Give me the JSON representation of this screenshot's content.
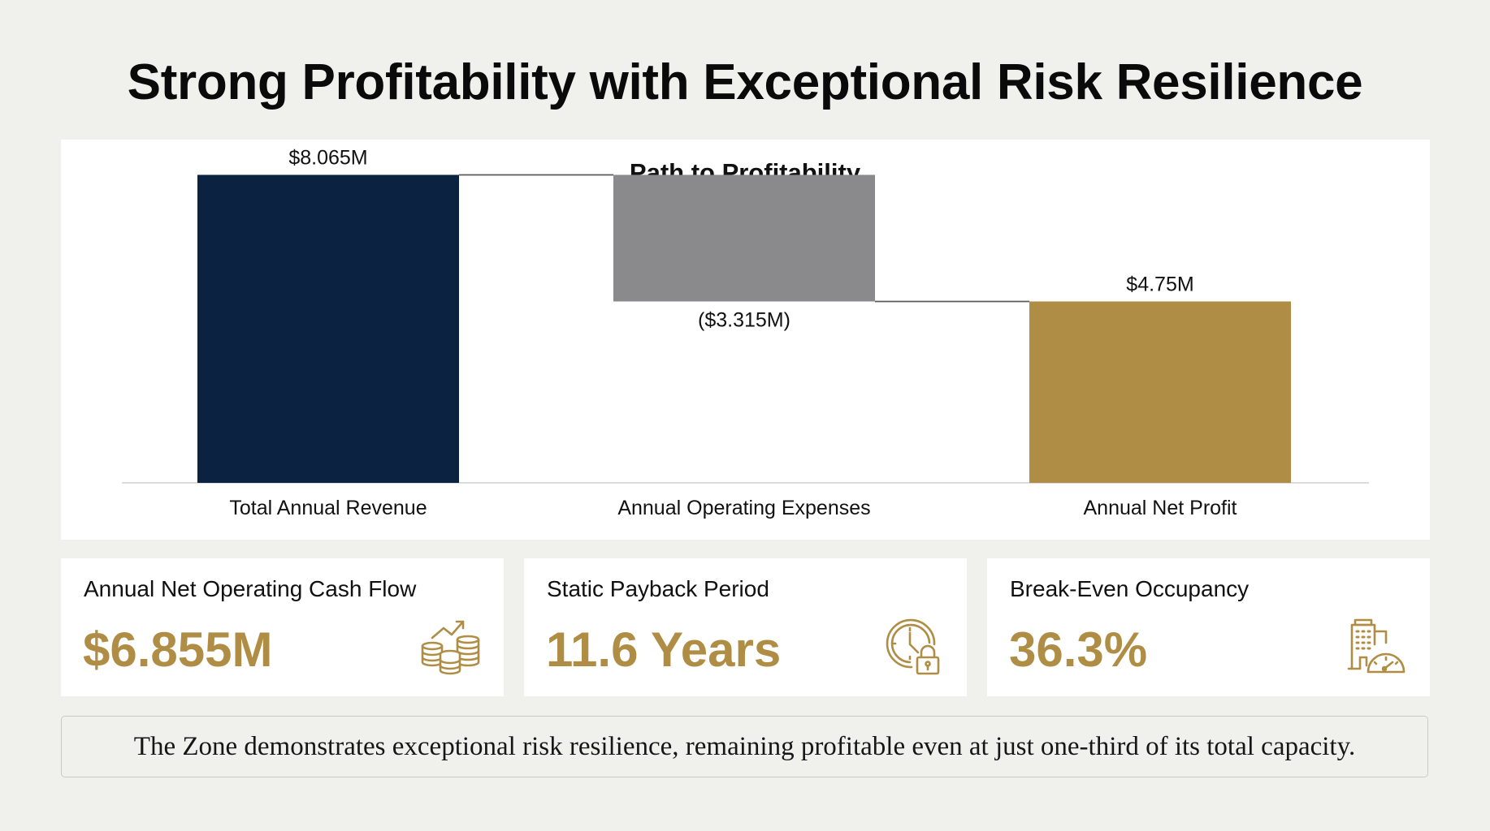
{
  "page": {
    "title": "Strong Profitability with Exceptional Risk Resilience"
  },
  "chart_data": {
    "type": "bar",
    "subtype": "waterfall",
    "title": "Path to Profitability",
    "xlabel": "",
    "ylabel": "",
    "unit": "USD millions",
    "categories": [
      "Total Annual Revenue",
      "Annual Operating Expenses",
      "Annual Net Profit"
    ],
    "values": [
      8.065,
      -3.315,
      4.75
    ],
    "kinds": [
      "total",
      "decrease",
      "total"
    ],
    "data_labels": [
      "$8.065M",
      "($3.315M)",
      "$4.75M"
    ],
    "colors": [
      "#0b2341",
      "#8a8a8c",
      "#b08d45"
    ],
    "ylim": [
      0,
      8.5
    ],
    "grid": false,
    "legend": "none",
    "connector_color": "#5a5a5a"
  },
  "kpis": [
    {
      "label": "Annual Net Operating Cash Flow",
      "value": "$6.855M",
      "icon": "coins-growth-icon"
    },
    {
      "label": "Static Payback Period",
      "value": "11.6 Years",
      "icon": "clock-lock-icon"
    },
    {
      "label": "Break-Even Occupancy",
      "value": "36.3%",
      "icon": "building-gauge-icon"
    }
  ],
  "summary": {
    "text": "The Zone demonstrates exceptional risk resilience, remaining profitable even at just one-third of its total capacity."
  },
  "colors": {
    "accent_gold": "#b08d45",
    "navy": "#0b2341",
    "gray": "#8a8a8c",
    "background": "#f0f0ed"
  }
}
